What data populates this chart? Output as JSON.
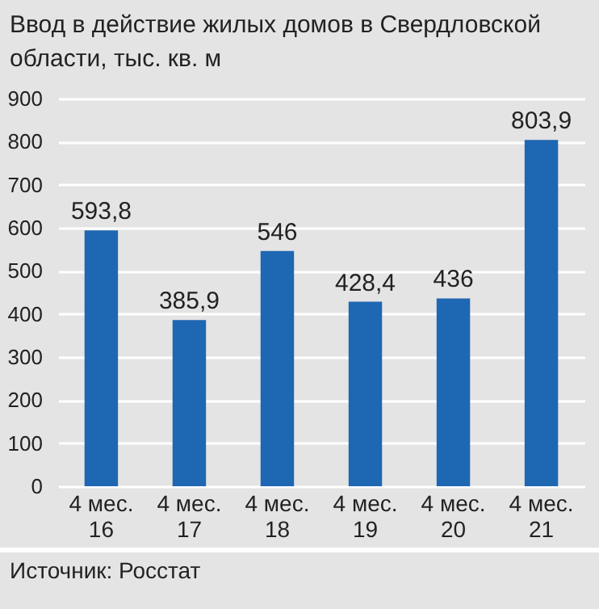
{
  "chart_data": {
    "type": "bar",
    "title": "Ввод в действие жилых домов в Свердловской области, тыс. кв. м",
    "categories": [
      "4 мес.\n16",
      "4 мес.\n17",
      "4 мес.\n18",
      "4 мес.\n19",
      "4 мес.\n20",
      "4 мес.\n21"
    ],
    "values": [
      593.8,
      385.9,
      546,
      428.4,
      436,
      803.9
    ],
    "value_labels": [
      "593,8",
      "385,9",
      "546",
      "428,4",
      "436",
      "803,9"
    ],
    "color": "#1e67b2",
    "ylim": [
      0,
      900
    ],
    "yticks": [
      0,
      100,
      200,
      300,
      400,
      500,
      600,
      700,
      800,
      900
    ],
    "grid": "y",
    "annotations": [
      "Источник: Росстат"
    ]
  }
}
